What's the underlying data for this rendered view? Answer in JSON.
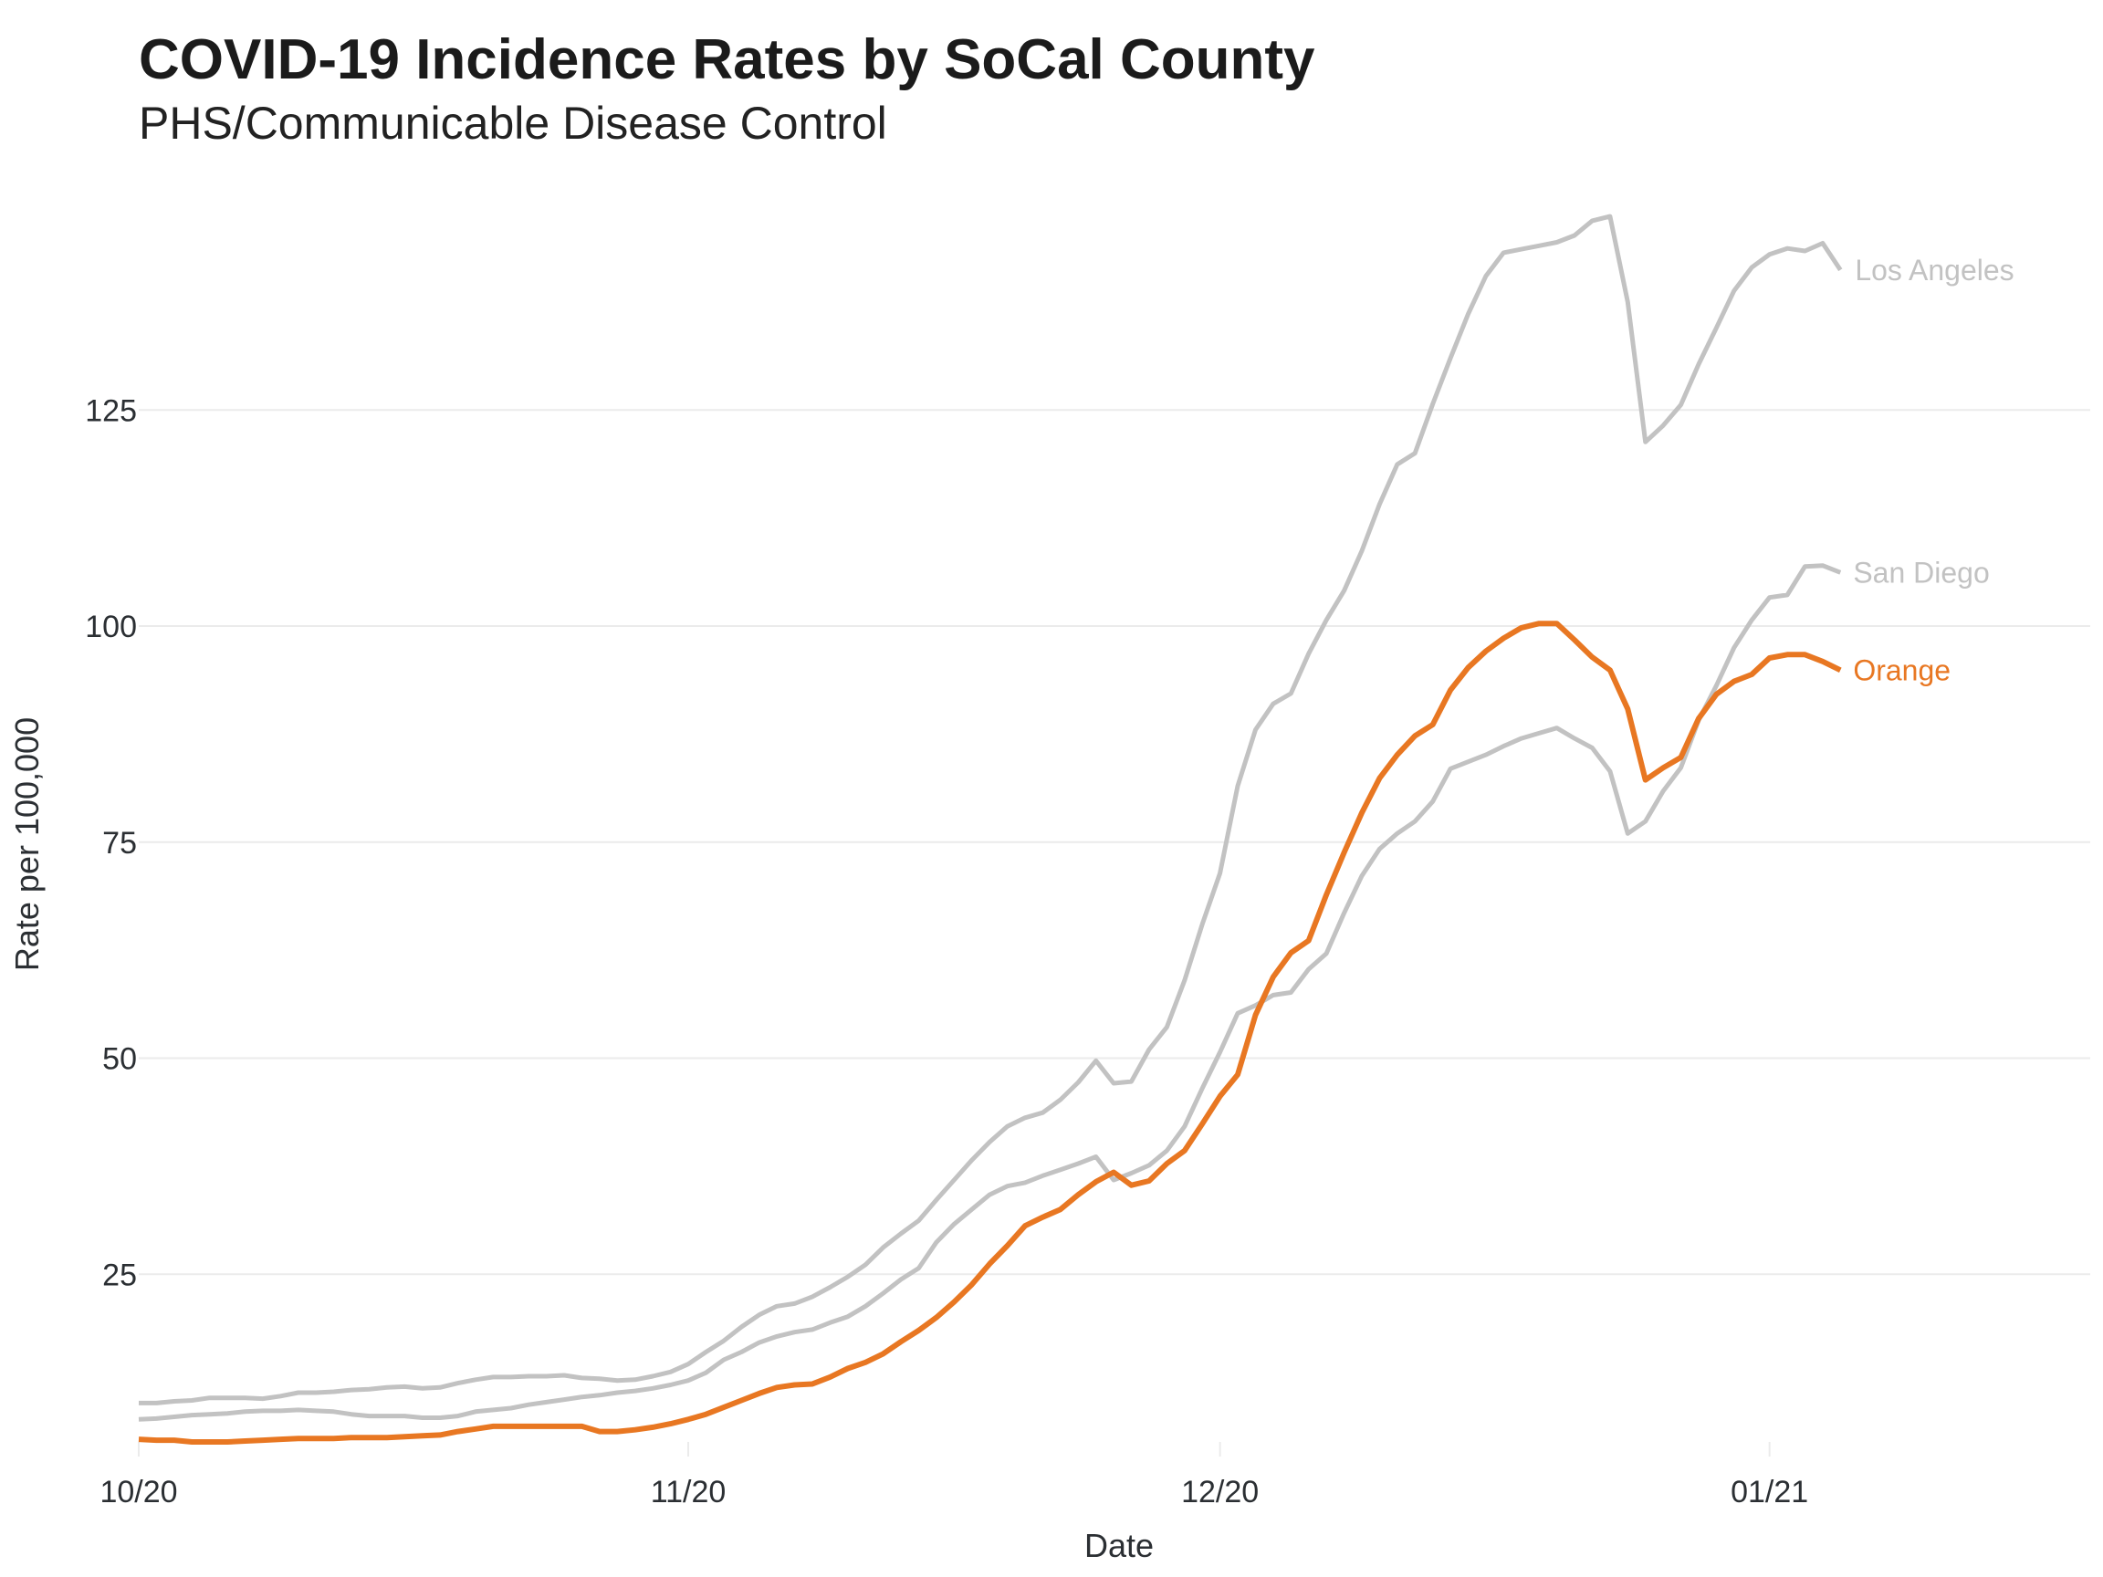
{
  "chart_data": {
    "type": "line",
    "title": "COVID-19 Incidence Rates by SoCal County",
    "subtitle": "PHS/Communicable Disease Control",
    "xlabel": "Date",
    "ylabel": "Rate per 100,000",
    "x_start": "2020-10-01",
    "x_end": "2021-01-05",
    "x_unit": "day",
    "xlim_days": [
      0,
      113
    ],
    "ylim": [
      3.5,
      148
    ],
    "y_ticks": [
      25,
      50,
      75,
      100,
      125
    ],
    "y_tick_labels": [
      "25",
      "50",
      "75",
      "100",
      "125"
    ],
    "x_ticks_days": [
      0,
      31,
      61,
      92
    ],
    "x_tick_labels": [
      "10/20",
      "11/20",
      "12/20",
      "01/21"
    ],
    "grid": "horizontal",
    "legend": "direct labels at line ends (right)",
    "series": [
      {
        "name": "Los Angeles",
        "color": "#c2c2c2",
        "label_color": "#c2c2c2",
        "values": [
          10.1,
          10.1,
          10.3,
          10.4,
          10.7,
          10.7,
          10.7,
          10.6,
          10.9,
          11.3,
          11.3,
          11.4,
          11.6,
          11.7,
          11.9,
          12.0,
          11.8,
          11.9,
          12.4,
          12.8,
          13.1,
          13.1,
          13.2,
          13.2,
          13.3,
          13.0,
          12.9,
          12.7,
          12.8,
          13.2,
          13.7,
          14.6,
          16.0,
          17.3,
          18.9,
          20.3,
          21.3,
          21.6,
          22.4,
          23.5,
          24.7,
          26.1,
          28.1,
          29.7,
          31.2,
          33.6,
          35.9,
          38.2,
          40.3,
          42.1,
          43.1,
          43.7,
          45.2,
          47.2,
          49.7,
          47.1,
          47.3,
          51.0,
          53.6,
          59.0,
          65.5,
          71.4,
          81.5,
          88.0,
          91.0,
          92.2,
          96.8,
          100.7,
          104.1,
          108.7,
          114.1,
          118.7,
          120.0,
          125.7,
          131.0,
          136.1,
          140.5,
          143.2,
          143.6,
          144.0,
          144.4,
          145.2,
          146.9,
          147.4,
          137.5,
          121.3,
          123.2,
          125.6,
          130.3,
          134.5,
          138.8,
          141.5,
          143.0,
          143.7,
          143.4,
          144.3,
          141.2
        ]
      },
      {
        "name": "San Diego",
        "color": "#c2c2c2",
        "label_color": "#c2c2c2",
        "values": [
          8.2,
          8.3,
          8.5,
          8.7,
          8.8,
          8.9,
          9.1,
          9.2,
          9.2,
          9.3,
          9.2,
          9.1,
          8.8,
          8.6,
          8.6,
          8.6,
          8.4,
          8.4,
          8.6,
          9.1,
          9.3,
          9.5,
          9.9,
          10.2,
          10.5,
          10.8,
          11.0,
          11.3,
          11.5,
          11.8,
          12.2,
          12.7,
          13.6,
          15.1,
          16.0,
          17.1,
          17.8,
          18.3,
          18.6,
          19.4,
          20.1,
          21.3,
          22.8,
          24.4,
          25.7,
          28.7,
          30.8,
          32.5,
          34.2,
          35.2,
          35.6,
          36.4,
          37.1,
          37.8,
          38.6,
          35.9,
          36.7,
          37.6,
          39.3,
          42.1,
          46.5,
          50.7,
          55.2,
          56.1,
          57.3,
          57.6,
          60.3,
          62.1,
          66.8,
          71.1,
          74.2,
          76.0,
          77.4,
          79.7,
          83.5,
          84.3,
          85.1,
          86.1,
          87.0,
          87.6,
          88.2,
          87.0,
          85.9,
          83.2,
          76.0,
          77.4,
          80.9,
          83.6,
          89.1,
          93.1,
          97.5,
          100.7,
          103.3,
          103.6,
          106.9,
          107.0,
          106.2
        ]
      },
      {
        "name": "Orange",
        "color": "#e87722",
        "label_color": "#e87722",
        "values": [
          5.9,
          5.8,
          5.8,
          5.6,
          5.6,
          5.6,
          5.7,
          5.8,
          5.9,
          6.0,
          6.0,
          6.0,
          6.1,
          6.1,
          6.1,
          6.2,
          6.3,
          6.4,
          6.8,
          7.1,
          7.4,
          7.4,
          7.4,
          7.4,
          7.4,
          7.4,
          6.8,
          6.8,
          7.0,
          7.3,
          7.7,
          8.2,
          8.8,
          9.6,
          10.4,
          11.2,
          11.9,
          12.2,
          12.3,
          13.1,
          14.1,
          14.8,
          15.8,
          17.2,
          18.5,
          20.0,
          21.8,
          23.8,
          26.2,
          28.3,
          30.6,
          31.6,
          32.5,
          34.2,
          35.7,
          36.8,
          35.3,
          35.8,
          37.8,
          39.3,
          42.4,
          45.6,
          48.1,
          55.0,
          59.4,
          62.2,
          63.6,
          68.9,
          73.8,
          78.4,
          82.4,
          85.1,
          87.3,
          88.6,
          92.6,
          95.2,
          97.1,
          98.6,
          99.8,
          100.3,
          100.3,
          98.4,
          96.4,
          94.9,
          90.4,
          82.2,
          83.6,
          84.8,
          89.3,
          92.1,
          93.6,
          94.4,
          96.3,
          96.7,
          96.7,
          95.9,
          94.9
        ]
      }
    ]
  }
}
